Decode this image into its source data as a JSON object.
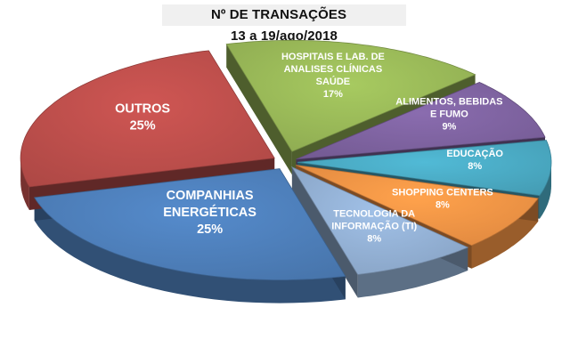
{
  "chart_data": {
    "type": "pie",
    "title": "Nº DE TRANSAÇÕES",
    "subtitle": "13 a 19/ago/2018",
    "slices": [
      {
        "label": [
          "HOSPITAIS E LAB. DE",
          "ANALISES CLÍNICAS",
          "SAÚDE"
        ],
        "value": 17,
        "pct_label": "17%",
        "color": "#9bbb59"
      },
      {
        "label": [
          "ALIMENTOS, BEBIDAS",
          "E FUMO"
        ],
        "value": 9,
        "pct_label": "9%",
        "color": "#8064a2"
      },
      {
        "label": [
          "EDUCAÇÃO"
        ],
        "value": 8,
        "pct_label": "8%",
        "color": "#4bacc6"
      },
      {
        "label": [
          "SHOPPING CENTERS"
        ],
        "value": 8,
        "pct_label": "8%",
        "color": "#f79646"
      },
      {
        "label": [
          "TECNOLOGIA DA",
          "INFORMAÇÃO (TI)"
        ],
        "value": 8,
        "pct_label": "8%",
        "color": "#95b3d7"
      },
      {
        "label": [
          "COMPANHIAS",
          "ENERGÉTICAS"
        ],
        "value": 25,
        "pct_label": "25%",
        "color": "#4f81bd"
      },
      {
        "label": [
          "OUTROS"
        ],
        "value": 25,
        "pct_label": "25%",
        "color": "#c0504d"
      }
    ]
  }
}
